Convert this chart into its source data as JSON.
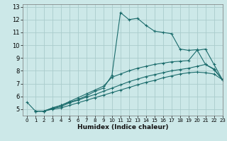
{
  "xlabel": "Humidex (Indice chaleur)",
  "xlim": [
    -0.5,
    23
  ],
  "ylim": [
    4.5,
    13.2
  ],
  "yticks": [
    5,
    6,
    7,
    8,
    9,
    10,
    11,
    12,
    13
  ],
  "xticks": [
    0,
    1,
    2,
    3,
    4,
    5,
    6,
    7,
    8,
    9,
    10,
    11,
    12,
    13,
    14,
    15,
    16,
    17,
    18,
    19,
    20,
    21,
    22,
    23
  ],
  "bg_color": "#cce8e8",
  "grid_color": "#aacccc",
  "line_color": "#1a6b6b",
  "lines": [
    {
      "x": [
        0,
        1,
        2,
        3,
        4,
        5,
        6,
        7,
        8,
        9,
        10,
        11,
        12,
        13,
        14,
        15,
        16,
        17,
        18,
        19,
        20,
        21,
        22,
        23
      ],
      "y": [
        5.55,
        4.85,
        4.85,
        5.0,
        5.1,
        5.3,
        5.5,
        5.7,
        5.9,
        6.1,
        6.3,
        6.5,
        6.7,
        6.9,
        7.1,
        7.25,
        7.45,
        7.6,
        7.75,
        7.85,
        7.9,
        7.85,
        7.75,
        7.3
      ]
    },
    {
      "x": [
        1,
        2,
        3,
        4,
        5,
        6,
        7,
        8,
        9,
        10,
        11,
        12,
        13,
        14,
        15,
        16,
        17,
        18,
        19,
        20,
        21,
        22,
        23
      ],
      "y": [
        4.85,
        4.85,
        5.05,
        5.2,
        5.5,
        5.7,
        5.95,
        6.15,
        6.4,
        6.65,
        6.9,
        7.15,
        7.35,
        7.55,
        7.7,
        7.85,
        8.0,
        8.1,
        8.2,
        8.35,
        8.5,
        8.15,
        7.3
      ]
    },
    {
      "x": [
        1,
        2,
        3,
        4,
        5,
        6,
        7,
        8,
        9,
        10,
        11,
        12,
        13,
        14,
        15,
        16,
        17,
        18,
        19,
        20,
        21,
        22,
        23
      ],
      "y": [
        4.85,
        4.85,
        5.1,
        5.3,
        5.6,
        5.9,
        6.2,
        6.5,
        6.8,
        7.5,
        7.75,
        8.0,
        8.2,
        8.35,
        8.5,
        8.6,
        8.7,
        8.75,
        8.8,
        9.6,
        9.7,
        8.5,
        7.3
      ]
    },
    {
      "x": [
        1,
        2,
        3,
        4,
        5,
        6,
        7,
        8,
        9,
        10,
        11,
        12,
        13,
        14,
        15,
        16,
        17,
        18,
        19,
        20,
        21,
        22,
        23
      ],
      "y": [
        4.85,
        4.85,
        5.1,
        5.3,
        5.55,
        5.75,
        6.05,
        6.4,
        6.65,
        7.65,
        12.55,
        12.0,
        12.1,
        11.55,
        11.1,
        11.0,
        10.9,
        9.7,
        9.6,
        9.65,
        8.5,
        8.1,
        7.3
      ]
    }
  ]
}
